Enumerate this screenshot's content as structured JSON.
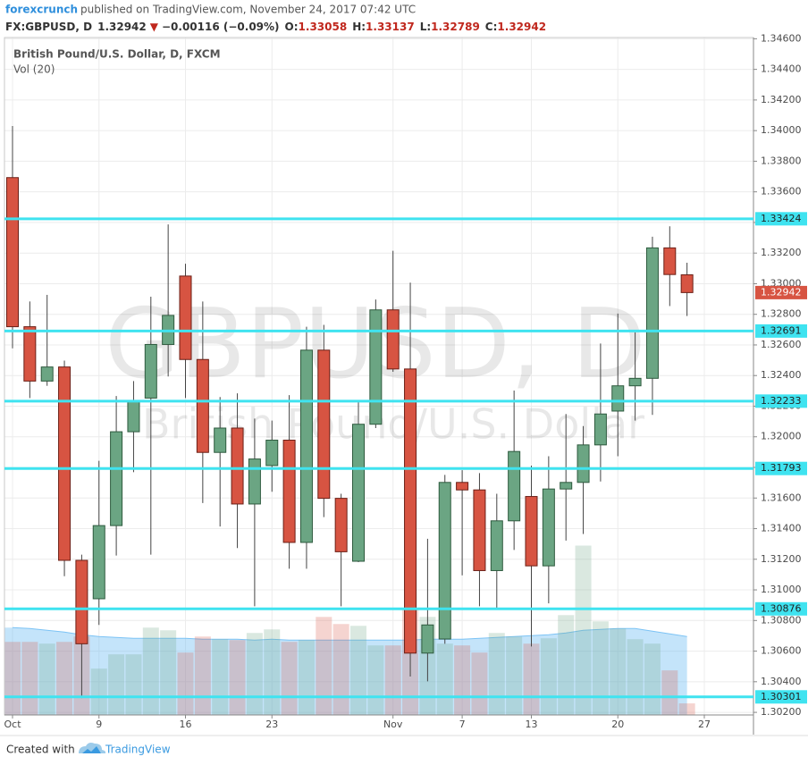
{
  "header": {
    "author": "forexcrunch",
    "published": "published on TradingView.com, November 24, 2017 07:42 UTC",
    "symbol": "FX:GBPUSD, D",
    "last": "1.32942",
    "arrow": "▼",
    "change": "−0.00116 (−0.09%)",
    "ohlc": [
      {
        "label": "O:",
        "value": "1.33058"
      },
      {
        "label": "H:",
        "value": "1.33137"
      },
      {
        "label": "L:",
        "value": "1.32789"
      },
      {
        "label": "C:",
        "value": "1.32942"
      }
    ]
  },
  "chart_data": {
    "type": "candlestick",
    "title": "British Pound/U.S. Dollar, D, FXCM",
    "volume_label": "Vol (20)",
    "watermark": "GBPUSD, D",
    "watermark_subtitle": "British Pound/U.S. Dollar",
    "categories": [
      "Oct",
      null,
      null,
      null,
      null,
      "9",
      null,
      null,
      null,
      null,
      "16",
      null,
      null,
      null,
      null,
      "23",
      null,
      null,
      null,
      null,
      null,
      null,
      "Nov",
      null,
      null,
      null,
      "7",
      null,
      null,
      null,
      "13",
      null,
      null,
      null,
      null,
      "20",
      null,
      null,
      null,
      null,
      "27"
    ],
    "open": [
      1.33693,
      1.32719,
      1.32364,
      1.32456,
      1.31193,
      1.30942,
      1.3142,
      1.32033,
      1.32253,
      1.32603,
      1.3305,
      1.32505,
      1.31898,
      1.32057,
      1.31561,
      1.31812,
      1.31978,
      1.3131,
      1.32566,
      1.31598,
      1.31187,
      1.32082,
      1.32829,
      1.32443,
      1.30587,
      1.30679,
      1.31702,
      1.31653,
      1.31126,
      1.31451,
      1.3161,
      1.31157,
      1.31659,
      1.31702,
      1.31947,
      1.32168,
      1.32333,
      1.32382,
      1.33234,
      1.33058,
      null
    ],
    "high": [
      1.3403,
      1.32884,
      1.32927,
      1.32498,
      1.3123,
      1.31843,
      1.32266,
      1.32364,
      1.32915,
      1.33387,
      1.3313,
      1.32884,
      1.3226,
      1.32284,
      1.32119,
      1.32106,
      1.32272,
      1.32719,
      1.32731,
      1.31628,
      1.32241,
      1.32897,
      1.33215,
      1.33007,
      1.31334,
      1.31751,
      1.31782,
      1.31763,
      1.31628,
      1.32302,
      1.31812,
      1.31873,
      1.32149,
      1.3207,
      1.32609,
      1.32805,
      1.32682,
      1.33307,
      1.33375,
      1.33137,
      null
    ],
    "low": [
      1.32578,
      1.32253,
      1.32333,
      1.31089,
      1.30293,
      1.30771,
      1.31224,
      1.31769,
      1.3123,
      1.32394,
      1.32253,
      1.31567,
      1.31414,
      1.31273,
      1.30893,
      1.31641,
      1.31138,
      1.31138,
      1.31475,
      1.30893,
      1.31181,
      1.32057,
      1.32425,
      1.30434,
      1.30403,
      1.30648,
      1.31095,
      1.30893,
      1.30875,
      1.31261,
      1.3063,
      1.30912,
      1.31322,
      1.31365,
      1.31708,
      1.31873,
      1.32106,
      1.32143,
      1.32854,
      1.32789,
      null
    ],
    "close": [
      1.32719,
      1.32364,
      1.32456,
      1.31193,
      1.30648,
      1.3142,
      1.32033,
      1.32229,
      1.32603,
      1.32793,
      1.32505,
      1.31898,
      1.32057,
      1.31561,
      1.31855,
      1.31978,
      1.3131,
      1.32566,
      1.31598,
      1.31249,
      1.32082,
      1.32829,
      1.32443,
      1.30587,
      1.30771,
      1.31702,
      1.31653,
      1.31126,
      1.31451,
      1.31904,
      1.31157,
      1.31659,
      1.31702,
      1.31947,
      1.32149,
      1.32333,
      1.32382,
      1.33234,
      1.3306,
      1.32942,
      null
    ],
    "volume": [
      82,
      82,
      80,
      82,
      88,
      52,
      68,
      68,
      98,
      95,
      70,
      88,
      85,
      84,
      92,
      96,
      82,
      84,
      110,
      102,
      100,
      78,
      78,
      120,
      110,
      80,
      78,
      70,
      92,
      88,
      80,
      86,
      112,
      190,
      105,
      97,
      85,
      80,
      50,
      13,
      null
    ],
    "volume_ma": [
      98,
      97,
      95,
      93,
      90,
      88,
      87,
      86,
      86,
      86,
      86,
      85,
      85,
      85,
      84,
      85,
      84,
      84,
      84,
      84,
      84,
      84,
      84,
      84,
      85,
      85,
      85,
      86,
      87,
      88,
      89,
      90,
      92,
      95,
      96,
      97,
      97,
      94,
      91,
      88,
      null
    ],
    "vlim": [
      0,
      760
    ],
    "up_color": "#6ba583",
    "down_color": "#d75442",
    "volume_ma_color": "#7cc3f5",
    "level_color": "#3fe3f0",
    "levels": [
      1.33424,
      1.32691,
      1.32233,
      1.31793,
      1.30876,
      1.30301
    ],
    "ylim": [
      1.30183,
      1.34608
    ],
    "yticks": [
      {
        "value": 1.302,
        "label": "1.30200"
      },
      {
        "value": 1.304,
        "label": "1.30400"
      },
      {
        "value": 1.306,
        "label": "1.30600"
      },
      {
        "value": 1.308,
        "label": "1.30800"
      },
      {
        "value": 1.31,
        "label": "1.31000"
      },
      {
        "value": 1.312,
        "label": "1.31200"
      },
      {
        "value": 1.314,
        "label": "1.31400"
      },
      {
        "value": 1.316,
        "label": "1.31600"
      },
      {
        "value": 1.318,
        "label": "1.31800"
      },
      {
        "value": 1.32,
        "label": "1.32000"
      },
      {
        "value": 1.322,
        "label": "1.32200"
      },
      {
        "value": 1.324,
        "label": "1.32400"
      },
      {
        "value": 1.326,
        "label": "1.32600"
      },
      {
        "value": 1.328,
        "label": "1.32800"
      },
      {
        "value": 1.33,
        "label": "1.33000"
      },
      {
        "value": 1.332,
        "label": "1.33200"
      },
      {
        "value": 1.334,
        "label": "1.33400"
      },
      {
        "value": 1.336,
        "label": "1.33600"
      },
      {
        "value": 1.338,
        "label": "1.33800"
      },
      {
        "value": 1.34,
        "label": "1.34000"
      },
      {
        "value": 1.342,
        "label": "1.34200"
      },
      {
        "value": 1.344,
        "label": "1.34400"
      },
      {
        "value": 1.346,
        "label": "1.34600"
      }
    ],
    "grid": true
  },
  "footer": {
    "text": "Created with",
    "brand": "TradingView"
  }
}
